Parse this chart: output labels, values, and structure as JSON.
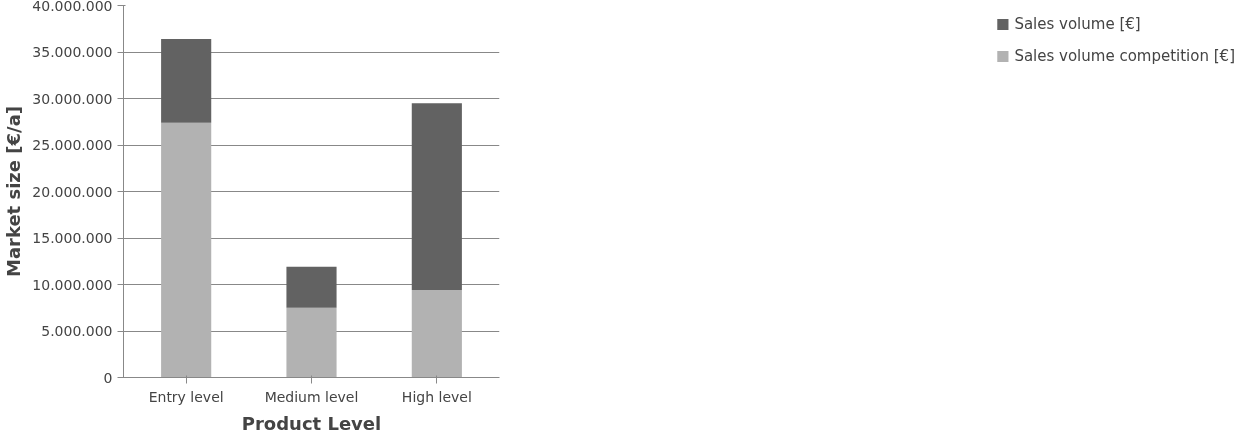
{
  "chart_data": {
    "type": "bar",
    "stacked": true,
    "xlabel": "Product Level",
    "ylabel": "Market size [€/a]",
    "categories": [
      "Entry level",
      "Medium level",
      "High level"
    ],
    "series": [
      {
        "name": "Sales volume competition [€]",
        "color": "#b2b2b2",
        "values": [
          27400000,
          7500000,
          9400000
        ]
      },
      {
        "name": "Sales volume [€]",
        "color": "#626262",
        "values": [
          9000000,
          4400000,
          20100000
        ]
      }
    ],
    "ylim": [
      0,
      40000000
    ],
    "yticks": [
      {
        "value": 0,
        "label": "0"
      },
      {
        "value": 5000000,
        "label": "5.000.000"
      },
      {
        "value": 10000000,
        "label": "10.000.000"
      },
      {
        "value": 15000000,
        "label": "15.000.000"
      },
      {
        "value": 20000000,
        "label": "20.000.000"
      },
      {
        "value": 25000000,
        "label": "25.000.000"
      },
      {
        "value": 30000000,
        "label": "30.000.000"
      },
      {
        "value": 35000000,
        "label": "35.000.000"
      },
      {
        "value": 40000000,
        "label": "40.000.000"
      }
    ],
    "grid": "y",
    "legend": "right"
  }
}
